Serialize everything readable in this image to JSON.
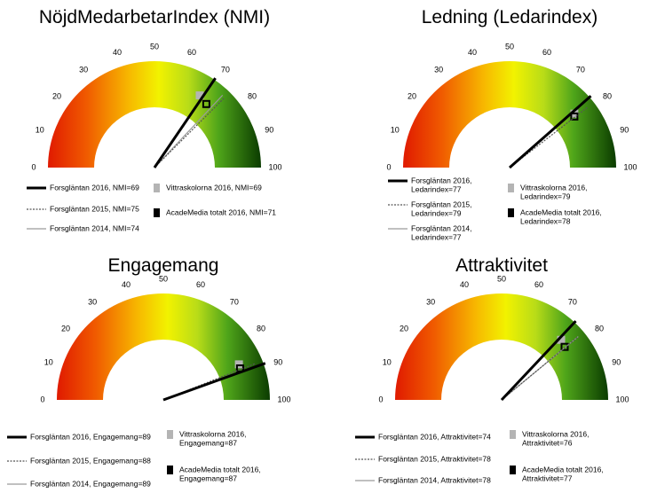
{
  "colors": {
    "forsglantan_2016": "#000000",
    "forsglantan_2015": "#555555",
    "forsglantan_2014": "#9a9a9a",
    "vittraskolorna_2016": "#b4b4b4",
    "academedia_totalt_2016": "#000000"
  },
  "chart_data": [
    {
      "type": "gauge",
      "title": "NöjdMedarbetarIndex  (NMI)",
      "ticks": [
        "0",
        "10",
        "20",
        "30",
        "40",
        "50",
        "60",
        "70",
        "80",
        "90",
        "100"
      ],
      "range": [
        0,
        100
      ],
      "needles": [
        {
          "name": "Forsgläntan 2016",
          "value": 69,
          "legend": [
            "Forsgläntan 2016, NMI=69"
          ]
        },
        {
          "name": "Forsgläntan 2015",
          "value": 75,
          "legend": [
            "Forsgläntan 2015, NMI=75"
          ]
        },
        {
          "name": "Forsgläntan 2014",
          "value": 74,
          "legend": [
            "Forsgläntan 2014, NMI=74"
          ]
        }
      ],
      "markers": [
        {
          "name": "Vittraskolorna 2016",
          "value": 69,
          "legend": [
            "Vittraskolorna 2016, NMI=69"
          ]
        },
        {
          "name": "AcadeMedia totalt 2016",
          "value": 71,
          "legend": [
            "AcadeMedia totalt 2016, NMI=71"
          ]
        }
      ]
    },
    {
      "type": "gauge",
      "title": "Ledning  (Ledarindex)",
      "ticks": [
        "0",
        "10",
        "20",
        "30",
        "40",
        "50",
        "60",
        "70",
        "80",
        "90",
        "100"
      ],
      "range": [
        0,
        100
      ],
      "needles": [
        {
          "name": "Forsgläntan 2016",
          "value": 77,
          "legend": [
            "Forsgläntan 2016,",
            "Ledarindex=77"
          ]
        },
        {
          "name": "Forsgläntan 2015",
          "value": 79,
          "legend": [
            "Forsgläntan 2015,",
            "Ledarindex=79"
          ]
        },
        {
          "name": "Forsgläntan 2014",
          "value": 77,
          "legend": [
            "Forsgläntan 2014,",
            "Ledarindex=77"
          ]
        }
      ],
      "markers": [
        {
          "name": "Vittraskolorna 2016",
          "value": 79,
          "legend": [
            "Vittraskolorna 2016,",
            "Ledarindex=79"
          ]
        },
        {
          "name": "AcadeMedia totalt 2016",
          "value": 78,
          "legend": [
            "AcadeMedia totalt 2016,",
            "Ledarindex=78"
          ]
        }
      ]
    },
    {
      "type": "gauge",
      "title": "Engagemang",
      "ticks": [
        "0",
        "10",
        "20",
        "30",
        "40",
        "50",
        "60",
        "70",
        "80",
        "90",
        "100"
      ],
      "range": [
        0,
        100
      ],
      "needles": [
        {
          "name": "Forsgläntan 2016",
          "value": 89,
          "legend": [
            "Forsgläntan 2016, Engagemang=89"
          ]
        },
        {
          "name": "Forsgläntan 2015",
          "value": 88,
          "legend": [
            "Forsgläntan 2015, Engagemang=88"
          ]
        },
        {
          "name": "Forsgläntan 2014",
          "value": 89,
          "legend": [
            "Forsgläntan 2014, Engagemang=89"
          ]
        }
      ],
      "markers": [
        {
          "name": "Vittraskolorna 2016",
          "value": 87,
          "legend": [
            "Vittraskolorna 2016,",
            "Engagemang=87"
          ]
        },
        {
          "name": "AcadeMedia totalt 2016",
          "value": 87,
          "legend": [
            "AcadeMedia totalt 2016,",
            "Engagemang=87"
          ]
        }
      ]
    },
    {
      "type": "gauge",
      "title": "Attraktivitet",
      "ticks": [
        "0",
        "10",
        "20",
        "30",
        "40",
        "50",
        "60",
        "70",
        "80",
        "90",
        "100"
      ],
      "range": [
        0,
        100
      ],
      "needles": [
        {
          "name": "Forsgläntan 2016",
          "value": 74,
          "legend": [
            "Forsgläntan 2016, Attraktivitet=74"
          ]
        },
        {
          "name": "Forsgläntan 2015",
          "value": 78,
          "legend": [
            "Forsgläntan 2015, Attraktivitet=78"
          ]
        },
        {
          "name": "Forsgläntan 2014",
          "value": 78,
          "legend": [
            "Forsgläntan 2014, Attraktivitet=78"
          ]
        }
      ],
      "markers": [
        {
          "name": "Vittraskolorna 2016",
          "value": 76,
          "legend": [
            "Vittraskolorna 2016,",
            "Attraktivitet=76"
          ]
        },
        {
          "name": "AcadeMedia totalt 2016",
          "value": 77,
          "legend": [
            "AcadeMedia totalt 2016,",
            "Attraktivitet=77"
          ]
        }
      ]
    }
  ]
}
